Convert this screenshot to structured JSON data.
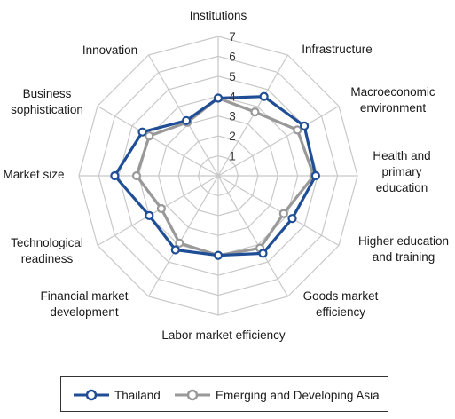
{
  "chart_data": {
    "type": "radar",
    "categories": [
      "Institutions",
      "Infrastructure",
      "Macroeconomic environment",
      "Health and primary education",
      "Higher education and training",
      "Goods market efficiency",
      "Labor market efficiency",
      "Financial market development",
      "Technological readiness",
      "Market size",
      "Business sophistication",
      "Innovation"
    ],
    "category_label_lines": [
      [
        "Institutions"
      ],
      [
        "Infrastructure"
      ],
      [
        "Macroeconomic",
        "environment"
      ],
      [
        "Health and",
        "primary",
        "education"
      ],
      [
        "Higher education",
        "and training"
      ],
      [
        "Goods market",
        "efficiency"
      ],
      [
        "Labor market efficiency"
      ],
      [
        "Financial market",
        "development"
      ],
      [
        "Technological",
        "readiness"
      ],
      [
        "Market size"
      ],
      [
        "Business",
        "sophistication"
      ],
      [
        "Innovation"
      ]
    ],
    "rlim": [
      0,
      7
    ],
    "ticks": [
      "1",
      "2",
      "3",
      "4",
      "5",
      "6",
      "7"
    ],
    "series": [
      {
        "name": "Thailand",
        "color": "#1f4e96",
        "values": [
          3.9,
          4.6,
          5.0,
          4.9,
          4.3,
          4.5,
          4.0,
          4.3,
          4.0,
          5.2,
          4.4,
          3.2
        ]
      },
      {
        "name": "Emerging and Developing Asia",
        "color": "#999999",
        "values": [
          3.9,
          3.7,
          4.6,
          4.8,
          3.8,
          4.2,
          4.0,
          3.9,
          3.3,
          4.1,
          4.0,
          3.1
        ]
      }
    ],
    "grid": true,
    "legend_position": "bottom"
  }
}
